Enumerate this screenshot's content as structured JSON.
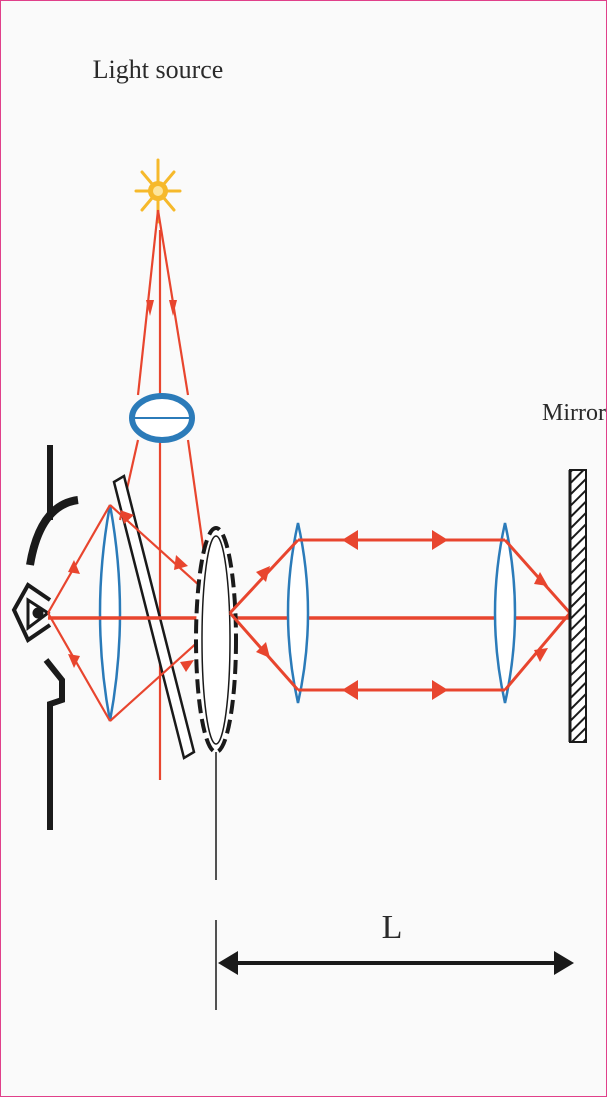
{
  "labels": {
    "light_source": "Light source",
    "mirror": "Mirror",
    "distance": "L"
  },
  "colors": {
    "ray": "#e8452e",
    "lens": "#2b7bb9",
    "source": "#f6b92b",
    "outline": "#1a1a1a",
    "frame_border": "#e0408a"
  },
  "icons": [
    "eye-icon",
    "light-source-icon",
    "condenser-lens-icon",
    "half-silvered-plate-icon",
    "toothed-wheel-icon",
    "mirror-icon"
  ]
}
